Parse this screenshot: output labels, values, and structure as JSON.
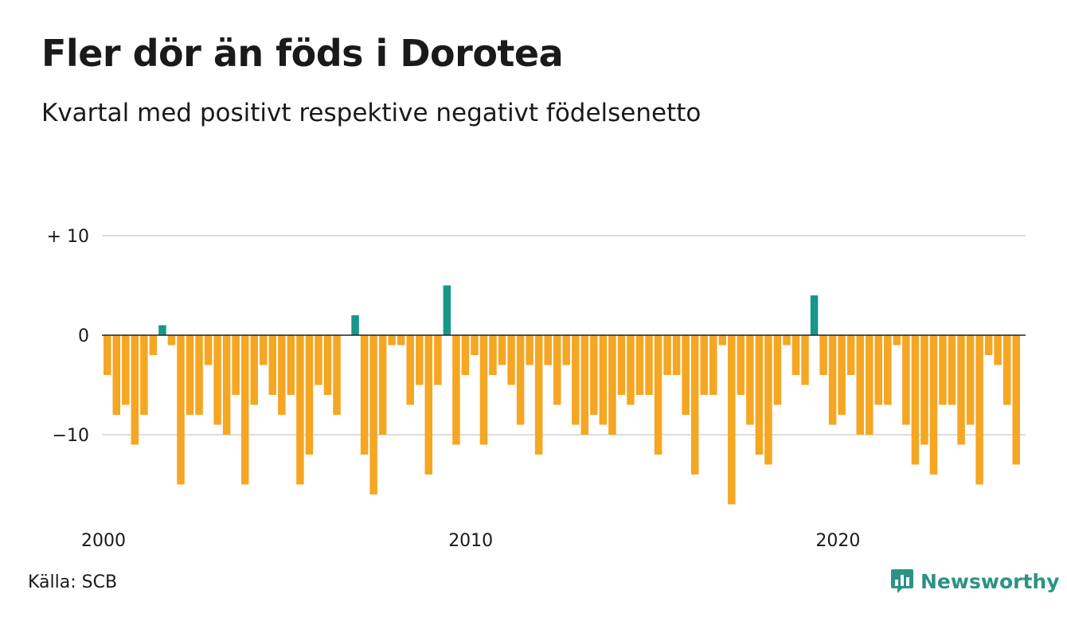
{
  "header": {
    "title": "Fler dör än föds i Dorotea",
    "subtitle": "Kvartal med positivt respektive negativt födelsenetto"
  },
  "footer": {
    "source": "Källa: SCB",
    "brand": "Newsworthy"
  },
  "colors": {
    "positive": "#17968a",
    "negative": "#f5a623",
    "gridline": "#dddddd",
    "zero_line": "#222222",
    "brand": "#2b9384"
  },
  "icons": {
    "brand_logo": "bar-chart-speech-bubble-icon"
  },
  "chart_data": {
    "type": "bar",
    "title": "Fler dör än föds i Dorotea",
    "subtitle": "Kvartal med positivt respektive negativt födelsenetto",
    "xlabel": "",
    "ylabel": "",
    "ylim": [
      -18,
      10
    ],
    "grid": true,
    "start_year": 2000,
    "periods_per_year": 4,
    "x_ticks": [
      {
        "year": 2000,
        "label": "2000"
      },
      {
        "year": 2010,
        "label": "2010"
      },
      {
        "year": 2020,
        "label": "2020"
      }
    ],
    "y_ticks": [
      {
        "value": 10,
        "label": "+ 10"
      },
      {
        "value": 0,
        "label": "0"
      },
      {
        "value": -10,
        "label": "−10"
      }
    ],
    "values": [
      -4,
      -8,
      -7,
      -11,
      -8,
      -2,
      1,
      -1,
      -15,
      -8,
      -8,
      -3,
      -9,
      -10,
      -6,
      -15,
      -7,
      -3,
      -6,
      -8,
      -6,
      -15,
      -12,
      -5,
      -6,
      -8,
      0,
      2,
      -12,
      -16,
      -10,
      -1,
      -1,
      -7,
      -5,
      -14,
      -5,
      5,
      -11,
      -4,
      -2,
      -11,
      -4,
      -3,
      -5,
      -9,
      -3,
      -12,
      -3,
      -7,
      -3,
      -9,
      -10,
      -8,
      -9,
      -10,
      -6,
      -7,
      -6,
      -6,
      -12,
      -4,
      -4,
      -8,
      -14,
      -6,
      -6,
      -1,
      -17,
      -6,
      -9,
      -12,
      -13,
      -7,
      -1,
      -4,
      -5,
      4,
      -4,
      -9,
      -8,
      -4,
      -10,
      -10,
      -7,
      -7,
      -1,
      -9,
      -13,
      -11,
      -14,
      -7,
      -7,
      -11,
      -9,
      -15,
      -2,
      -3,
      -7,
      -13
    ]
  }
}
